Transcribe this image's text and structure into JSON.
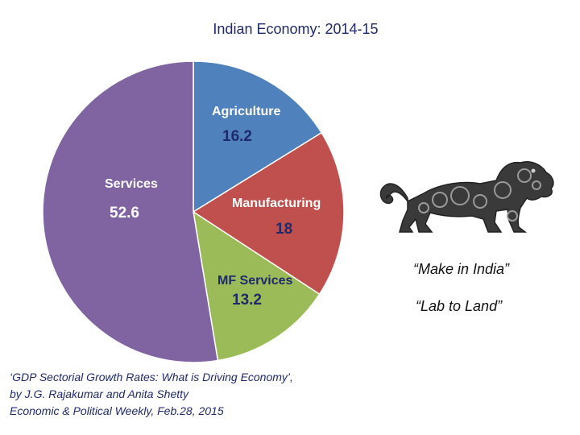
{
  "title": "Indian Economy: 2014-15",
  "chart_data": {
    "type": "pie",
    "title": "Indian Economy: 2014-15",
    "slices": [
      {
        "label": "Agriculture",
        "value": 16.2,
        "display": "16.2",
        "color": "#4f81bd",
        "text_color": "#ffffff",
        "value_color": "#1f2a6b"
      },
      {
        "label": "Manufacturing",
        "value": 18,
        "display": "18",
        "color": "#c0504d",
        "text_color": "#ffffff",
        "value_color": "#1f2a6b"
      },
      {
        "label": "MF Services",
        "value": 13.2,
        "display": "13.2",
        "color": "#9bbb59",
        "text_color": "#1f2a6b",
        "value_color": "#1f2a6b"
      },
      {
        "label": "Services",
        "value": 52.6,
        "display": "52.6",
        "color": "#8064a2",
        "text_color": "#ffffff",
        "value_color": "#ffffff"
      }
    ]
  },
  "slogans": [
    "“Make in India”",
    "“Lab to Land”"
  ],
  "citation": {
    "line1": "‘GDP Sectorial Growth Rates: What is Driving Economy’,",
    "line2": "by J.G. Rajakumar and Anita Shetty",
    "line3": "Economic & Political Weekly, Feb.28, 2015"
  },
  "logo": {
    "name": "make-in-india-lion",
    "color": "#3a3a3a"
  }
}
